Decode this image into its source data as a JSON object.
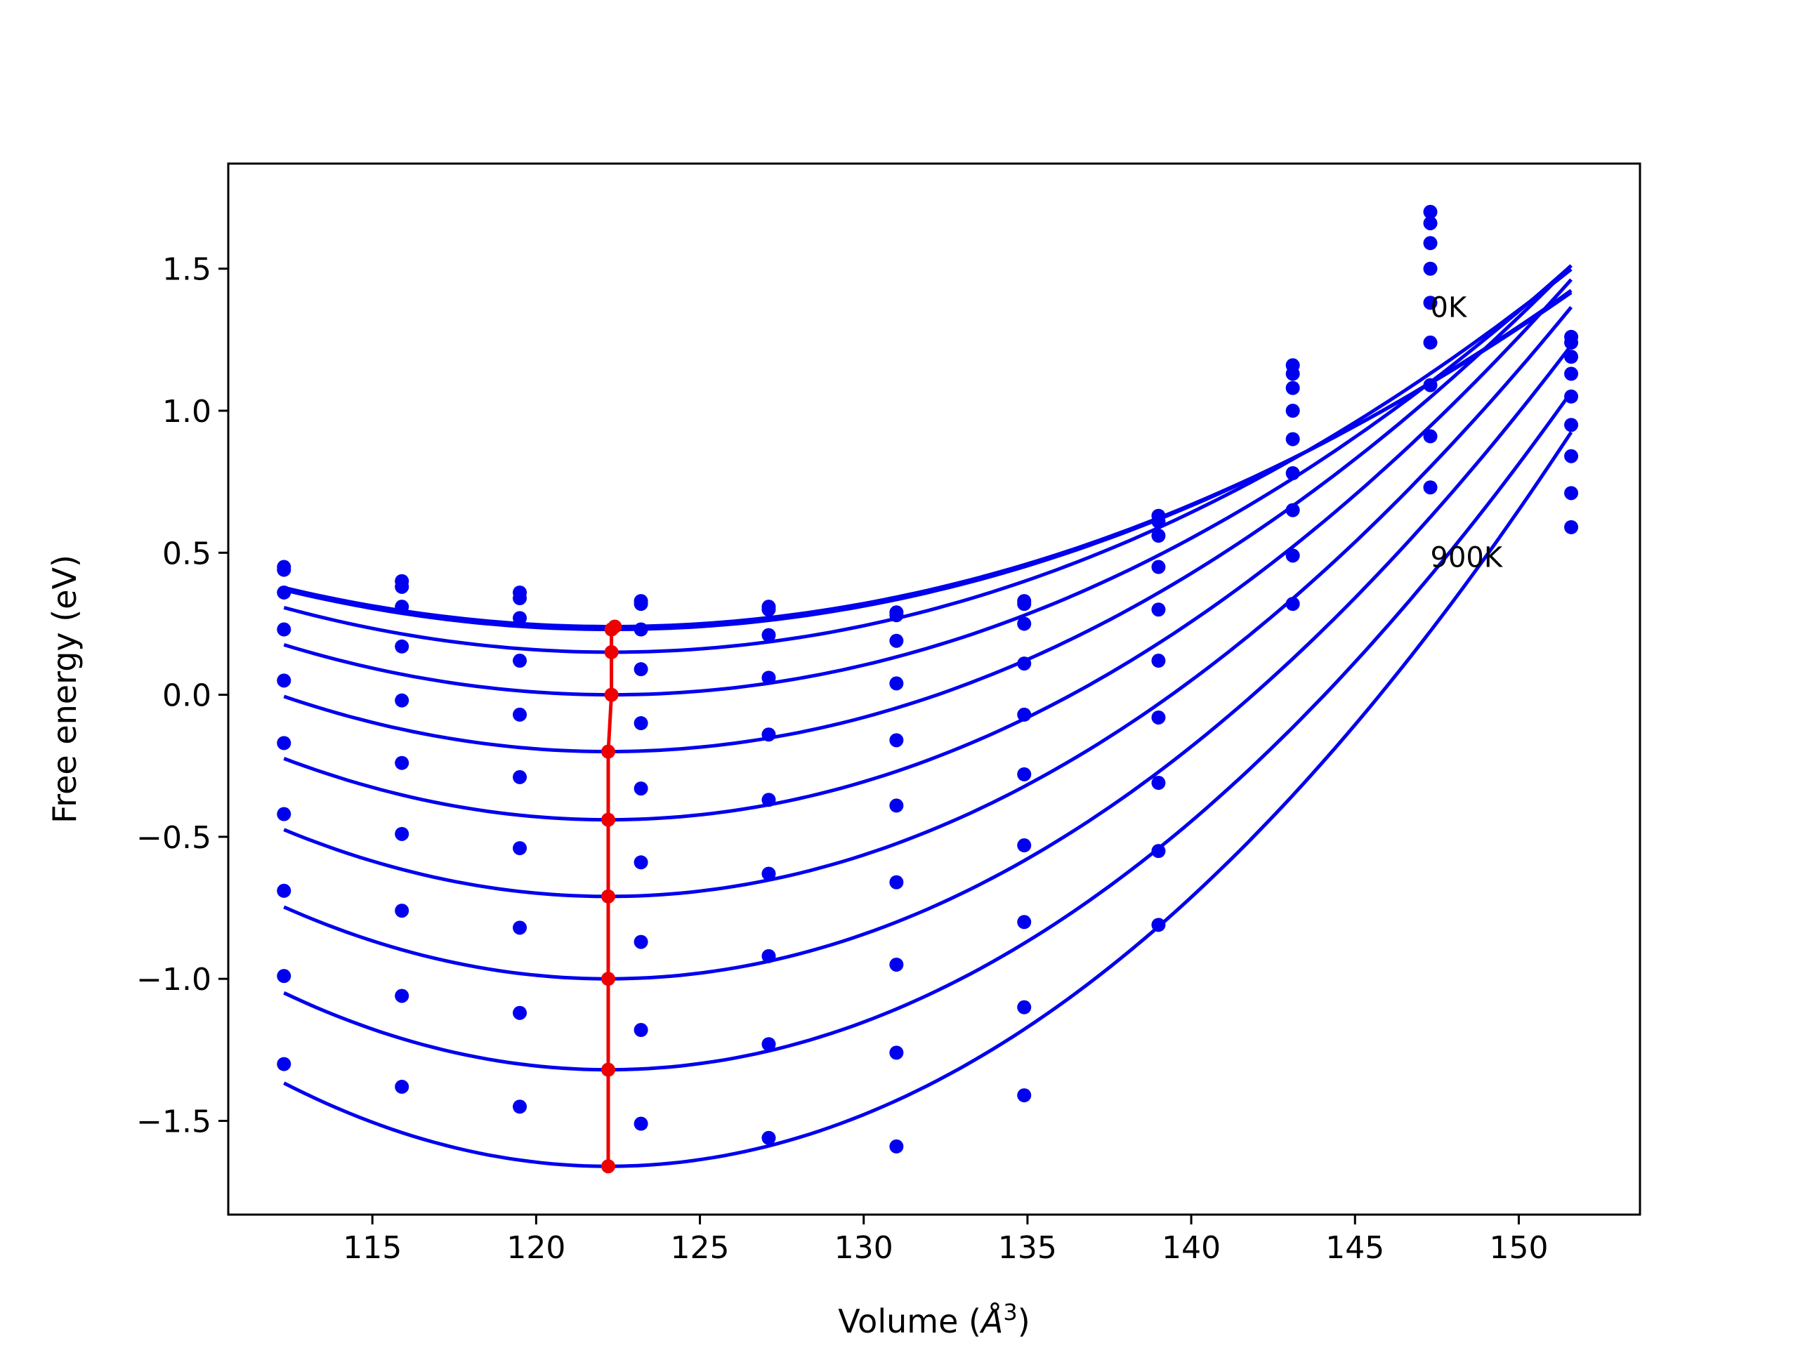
{
  "chart_data": {
    "type": "line",
    "title": "",
    "xlabel": "Volume (",
    "xlabel_unit_base": "Å",
    "xlabel_unit_exp": "3",
    "xlabel_close": ")",
    "ylabel": "Free energy (eV)",
    "xlim": [
      110.6,
      153.7
    ],
    "ylim": [
      -1.83,
      1.87
    ],
    "xticks": [
      115,
      120,
      125,
      130,
      135,
      140,
      145,
      150
    ],
    "xtick_labels": [
      "115",
      "120",
      "125",
      "130",
      "135",
      "140",
      "145",
      "150"
    ],
    "yticks": [
      -1.5,
      -1.0,
      -0.5,
      0.0,
      0.5,
      1.0,
      1.5
    ],
    "ytick_labels": [
      "−1.5",
      "−1.0",
      "−0.5",
      "0.0",
      "0.5",
      "1.0",
      "1.5"
    ],
    "grid": false,
    "colors": {
      "fit": "#0000ee",
      "points": "#0000ee",
      "minima": "#ee0000"
    },
    "annotations": [
      {
        "text": "0K",
        "x": 147.3,
        "y": 1.33
      },
      {
        "text": "900K",
        "x": 147.3,
        "y": 0.45
      }
    ],
    "volumes": [
      112.3,
      115.9,
      119.5,
      123.2,
      127.1,
      131.0,
      134.9,
      139.0,
      143.1,
      147.3,
      151.6
    ],
    "series": [
      {
        "values": [
          0.45,
          0.4,
          0.36,
          0.33,
          0.31,
          0.29,
          0.33,
          0.63,
          1.16,
          1.7,
          1.26
        ]
      },
      {
        "values": [
          0.44,
          0.38,
          0.34,
          0.32,
          0.3,
          0.28,
          0.32,
          0.61,
          1.13,
          1.66,
          1.24
        ]
      },
      {
        "values": [
          0.36,
          0.31,
          0.27,
          0.23,
          0.21,
          0.19,
          0.25,
          0.56,
          1.08,
          1.59,
          1.19
        ]
      },
      {
        "values": [
          0.23,
          0.17,
          0.12,
          0.09,
          0.06,
          0.04,
          0.11,
          0.45,
          1.0,
          1.5,
          1.13
        ]
      },
      {
        "values": [
          0.05,
          -0.02,
          -0.07,
          -0.1,
          -0.14,
          -0.16,
          -0.07,
          0.3,
          0.9,
          1.38,
          1.05
        ]
      },
      {
        "values": [
          -0.17,
          -0.24,
          -0.29,
          -0.33,
          -0.37,
          -0.39,
          -0.28,
          0.12,
          0.78,
          1.24,
          0.95
        ]
      },
      {
        "values": [
          -0.42,
          -0.49,
          -0.54,
          -0.59,
          -0.63,
          -0.66,
          -0.53,
          -0.08,
          0.65,
          1.09,
          0.84
        ]
      },
      {
        "values": [
          -0.69,
          -0.76,
          -0.82,
          -0.87,
          -0.92,
          -0.95,
          -0.8,
          -0.31,
          0.49,
          0.91,
          0.71
        ]
      },
      {
        "values": [
          -0.99,
          -1.06,
          -1.12,
          -1.18,
          -1.23,
          -1.26,
          -1.1,
          -0.55,
          0.32,
          0.73,
          0.59
        ]
      },
      {
        "values": [
          -1.3,
          -1.38,
          -1.45,
          -1.51,
          -1.56,
          -1.59,
          -1.41,
          -0.81,
          null,
          null,
          null
        ]
      }
    ],
    "fit_curves": [
      {
        "v0": 122.3,
        "e0": 0.24,
        "k": 0.00137,
        "v_range": [
          112.3,
          151.6
        ]
      },
      {
        "v0": 122.3,
        "e0": 0.23,
        "k": 0.00139,
        "v_range": [
          112.3,
          151.6
        ]
      },
      {
        "v0": 122.3,
        "e0": 0.15,
        "k": 0.00157,
        "v_range": [
          112.3,
          151.6
        ]
      },
      {
        "v0": 122.3,
        "e0": 0.0,
        "k": 0.00176,
        "v_range": [
          112.3,
          151.6
        ]
      },
      {
        "v0": 122.2,
        "e0": -0.2,
        "k": 0.00198,
        "v_range": [
          112.3,
          151.6
        ]
      },
      {
        "v0": 122.2,
        "e0": -0.44,
        "k": 0.0022,
        "v_range": [
          112.3,
          151.6
        ]
      },
      {
        "v0": 122.2,
        "e0": -0.71,
        "k": 0.0024,
        "v_range": [
          112.3,
          151.6
        ]
      },
      {
        "v0": 122.2,
        "e0": -1.0,
        "k": 0.00258,
        "v_range": [
          112.3,
          151.6
        ]
      },
      {
        "v0": 122.2,
        "e0": -1.32,
        "k": 0.00276,
        "v_range": [
          112.3,
          151.6
        ]
      },
      {
        "v0": 122.2,
        "e0": -1.66,
        "k": 0.00299,
        "v_range": [
          112.3,
          151.6
        ]
      }
    ],
    "minima": {
      "x": [
        122.4,
        122.3,
        122.3,
        122.3,
        122.2,
        122.2,
        122.2,
        122.2,
        122.2,
        122.2
      ],
      "y": [
        0.24,
        0.23,
        0.15,
        0.0,
        -0.2,
        -0.44,
        -0.71,
        -1.0,
        -1.32,
        -1.66
      ]
    }
  }
}
